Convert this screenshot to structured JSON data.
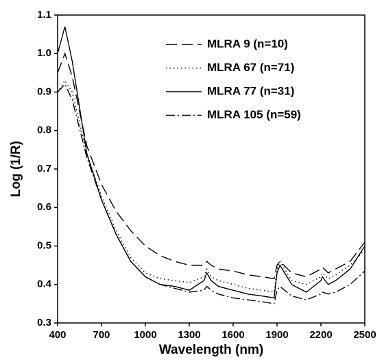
{
  "chart_data": {
    "type": "line",
    "x_label": "Wavelength (nm)",
    "y_label": "Log (1/R)",
    "x": [
      400,
      450,
      500,
      600,
      700,
      800,
      900,
      1000,
      1100,
      1200,
      1300,
      1400,
      1420,
      1450,
      1500,
      1600,
      1700,
      1800,
      1880,
      1900,
      1920,
      2000,
      2100,
      2200,
      2210,
      2250,
      2300,
      2400,
      2500
    ],
    "series": [
      {
        "name": "MLRA 9 (n=10)",
        "color": "#000000",
        "style": "dashed",
        "values": [
          0.95,
          1.0,
          0.94,
          0.76,
          0.66,
          0.59,
          0.54,
          0.5,
          0.475,
          0.46,
          0.45,
          0.45,
          0.46,
          0.45,
          0.44,
          0.435,
          0.425,
          0.42,
          0.415,
          0.45,
          0.46,
          0.43,
          0.42,
          0.44,
          0.445,
          0.43,
          0.44,
          0.46,
          0.51
        ]
      },
      {
        "name": "MLRA 67 (n=71)",
        "color": "#000000",
        "style": "dotted",
        "values": [
          0.9,
          0.93,
          0.9,
          0.74,
          0.63,
          0.54,
          0.47,
          0.43,
          0.415,
          0.41,
          0.405,
          0.42,
          0.44,
          0.42,
          0.41,
          0.4,
          0.39,
          0.385,
          0.38,
          0.44,
          0.46,
          0.41,
          0.4,
          0.42,
          0.43,
          0.415,
          0.425,
          0.45,
          0.49
        ]
      },
      {
        "name": "MLRA 77 (n=31)",
        "color": "#000000",
        "style": "solid",
        "values": [
          1.0,
          1.07,
          0.98,
          0.74,
          0.62,
          0.53,
          0.46,
          0.42,
          0.4,
          0.395,
          0.385,
          0.41,
          0.43,
          0.41,
          0.395,
          0.385,
          0.375,
          0.37,
          0.365,
          0.43,
          0.45,
          0.4,
          0.38,
          0.41,
          0.42,
          0.4,
          0.41,
          0.44,
          0.5
        ]
      },
      {
        "name": "MLRA 105 (n=59)",
        "color": "#000000",
        "style": "dashdot",
        "values": [
          0.9,
          0.92,
          0.88,
          0.73,
          0.62,
          0.53,
          0.46,
          0.42,
          0.4,
          0.39,
          0.38,
          0.385,
          0.395,
          0.385,
          0.375,
          0.365,
          0.36,
          0.355,
          0.35,
          0.385,
          0.395,
          0.37,
          0.36,
          0.375,
          0.38,
          0.375,
          0.38,
          0.4,
          0.435
        ]
      }
    ],
    "xlim": [
      400,
      2500
    ],
    "xticks": [
      400,
      700,
      1000,
      1300,
      1600,
      1900,
      2200,
      2500
    ],
    "ylim": [
      0.3,
      1.1
    ],
    "yticks": [
      0.3,
      0.4,
      0.5,
      0.6,
      0.7,
      0.8,
      0.9,
      {
        "value": 1.0,
        "label": "1.0"
      },
      1.1
    ],
    "legend": "top-right",
    "grid": false
  }
}
